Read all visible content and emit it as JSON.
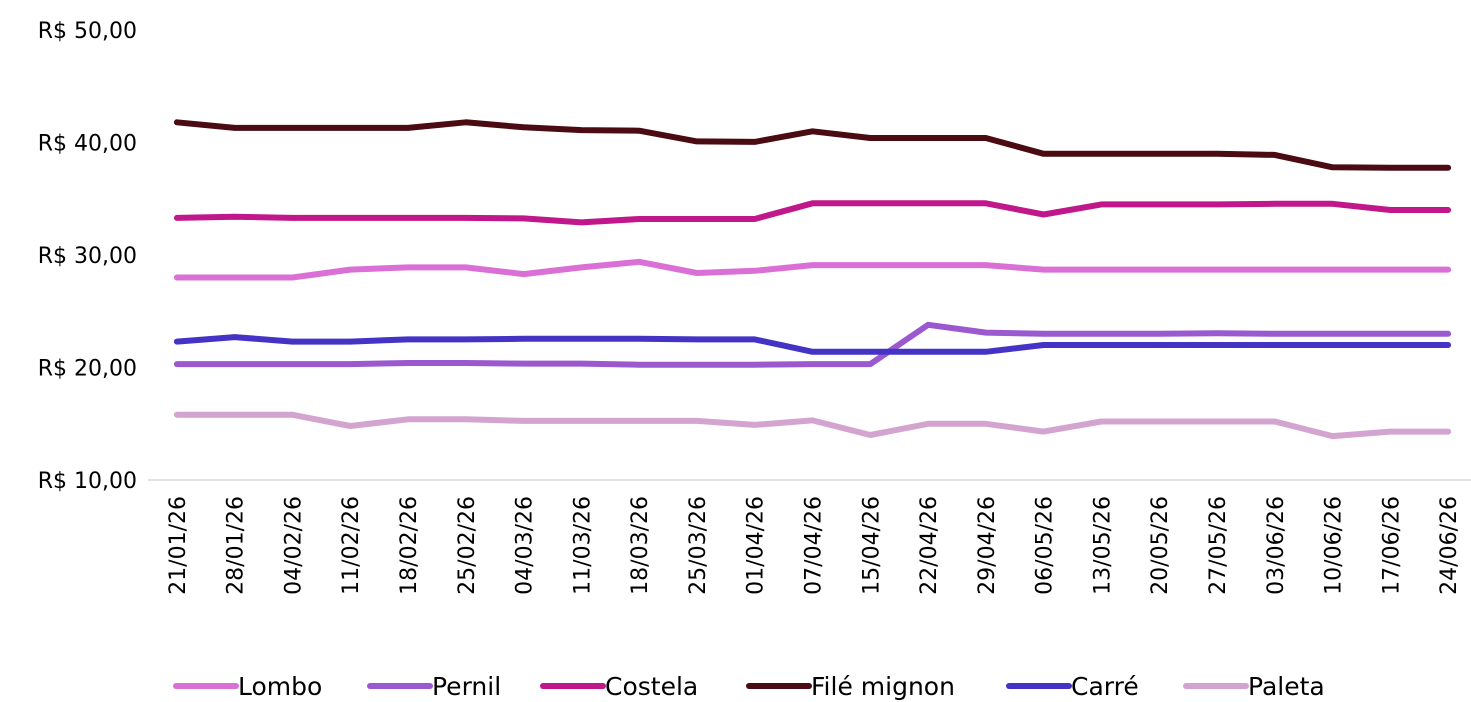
{
  "chart_data": {
    "type": "line",
    "ylim": [
      10,
      50
    ],
    "yticks": [
      {
        "value": 10,
        "label": "R$ 10,00"
      },
      {
        "value": 20,
        "label": "R$ 20,00"
      },
      {
        "value": 30,
        "label": "R$ 30,00"
      },
      {
        "value": 40,
        "label": "R$ 40,00"
      },
      {
        "value": 50,
        "label": "R$ 50,00"
      }
    ],
    "grid": false,
    "legend_position": "bottom",
    "x": [
      "21/01/26",
      "28/01/26",
      "04/02/26",
      "11/02/26",
      "18/02/26",
      "25/02/26",
      "04/03/26",
      "11/03/26",
      "18/03/26",
      "25/03/26",
      "01/04/26",
      "07/04/26",
      "15/04/26",
      "22/04/26",
      "29/04/26",
      "06/05/26",
      "13/05/26",
      "20/05/26",
      "27/05/26",
      "03/06/26",
      "10/06/26",
      "17/06/26",
      "24/06/26"
    ],
    "series": [
      {
        "name": "Lombo",
        "color": "#DA70D6",
        "values": [
          28.0,
          28.0,
          28.0,
          28.7,
          28.9,
          28.9,
          28.3,
          28.9,
          29.4,
          28.4,
          28.6,
          29.1,
          29.1,
          29.1,
          29.1,
          28.7,
          28.7,
          28.7,
          28.7,
          28.7,
          28.7,
          28.7,
          28.7
        ]
      },
      {
        "name": "Pernil",
        "color": "#9B59D0",
        "values": [
          20.3,
          20.3,
          20.3,
          20.3,
          20.4,
          20.4,
          20.35,
          20.35,
          20.25,
          20.25,
          20.25,
          20.3,
          20.3,
          23.8,
          23.1,
          23.0,
          23.0,
          23.0,
          23.05,
          23.0,
          23.0,
          23.0,
          23.0
        ]
      },
      {
        "name": "Costela",
        "color": "#C0178A",
        "values": [
          33.3,
          33.4,
          33.3,
          33.3,
          33.3,
          33.3,
          33.25,
          32.9,
          33.2,
          33.2,
          33.2,
          34.6,
          34.6,
          34.6,
          34.6,
          33.6,
          34.5,
          34.5,
          34.5,
          34.55,
          34.55,
          34.0,
          34.0
        ]
      },
      {
        "name": "Filé mignon",
        "color": "#4A0B12",
        "values": [
          41.8,
          41.3,
          41.3,
          41.3,
          41.3,
          41.8,
          41.35,
          41.1,
          41.05,
          40.1,
          40.05,
          41.0,
          40.4,
          40.4,
          40.4,
          39.0,
          39.0,
          39.0,
          39.0,
          38.9,
          37.8,
          37.75,
          37.75
        ]
      },
      {
        "name": "Carré",
        "color": "#4433C4",
        "values": [
          22.3,
          22.7,
          22.3,
          22.3,
          22.5,
          22.5,
          22.55,
          22.55,
          22.55,
          22.5,
          22.5,
          21.4,
          21.4,
          21.4,
          21.4,
          22.0,
          22.0,
          22.0,
          22.0,
          22.0,
          22.0,
          22.0,
          22.0
        ]
      },
      {
        "name": "Paleta",
        "color": "#D4A4D0",
        "values": [
          15.8,
          15.8,
          15.8,
          14.8,
          15.4,
          15.4,
          15.25,
          15.25,
          15.25,
          15.25,
          14.9,
          15.3,
          14.0,
          15.0,
          15.0,
          14.3,
          15.2,
          15.2,
          15.2,
          15.2,
          13.9,
          14.3,
          14.3
        ]
      }
    ]
  }
}
